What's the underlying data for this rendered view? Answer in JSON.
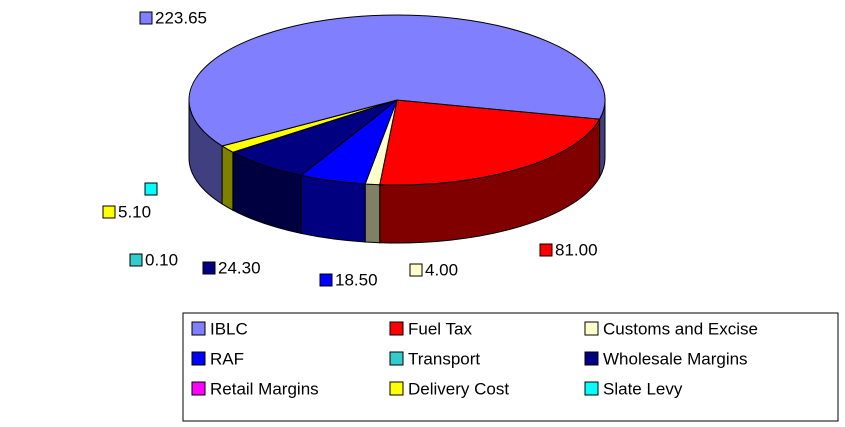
{
  "chart_data": {
    "type": "pie3d",
    "categories": [
      "IBLC",
      "Fuel Tax",
      "Customs and Excise",
      "RAF",
      "Transport",
      "Wholesale Margins",
      "Retail Margins",
      "Delivery Cost",
      "Slate Levy"
    ],
    "values": [
      223.65,
      81.0,
      4.0,
      18.5,
      0.1,
      24.3,
      0,
      5.1,
      0
    ],
    "value_labels": [
      "223.65",
      "81.00",
      "4.00",
      "18.50",
      "0.10",
      "24.30",
      null,
      "5.10",
      null
    ],
    "colors": [
      "#8080ff",
      "#ff0000",
      "#ffffcc",
      "#0000ff",
      "#33cccc",
      "#000080",
      "#ff00ff",
      "#ffff00",
      "#00ffff"
    ],
    "legend": "bottom"
  }
}
